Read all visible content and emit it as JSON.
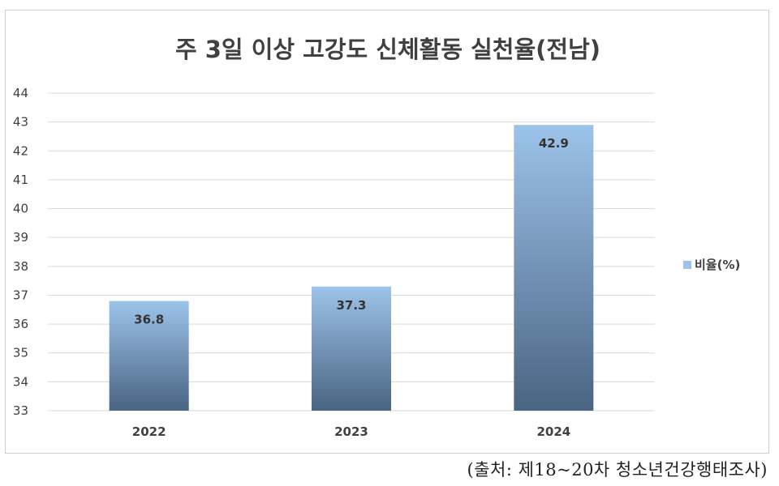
{
  "chart_data": {
    "type": "bar",
    "title": "주 3일 이상 고강도 신체활동 실천율(전남)",
    "categories": [
      "2022",
      "2023",
      "2024"
    ],
    "series": [
      {
        "name": "비율(%)",
        "values": [
          36.8,
          37.3,
          42.9
        ]
      }
    ],
    "data_labels": [
      "36.8",
      "37.3",
      "42.9"
    ],
    "ylim": [
      33,
      44
    ],
    "yticks": [
      33,
      34,
      35,
      36,
      37,
      38,
      39,
      40,
      41,
      42,
      43,
      44
    ],
    "grid": true,
    "legend": "right",
    "colors": {
      "bar_top": "#9dc3ea",
      "bar_bottom": "#4a6482",
      "grid": "#d9d9d9",
      "text": "#404040"
    }
  },
  "source_note": "(출처:  제18~20차  청소년건강행태조사)"
}
